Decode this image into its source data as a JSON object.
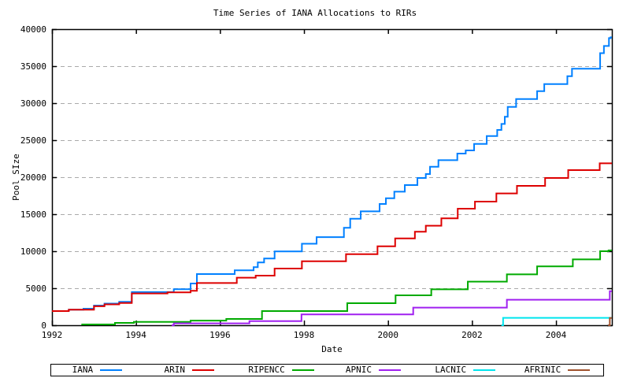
{
  "chart_data": {
    "type": "line",
    "step": true,
    "title": "Time Series of IANA Allocations to RIRs",
    "xlabel": "Date",
    "ylabel": "Pool SIze",
    "xlim": [
      1992,
      2005.33
    ],
    "ylim": [
      0,
      40000
    ],
    "xticks": [
      1992,
      1994,
      1996,
      1998,
      2000,
      2002,
      2004
    ],
    "yticks": [
      0,
      5000,
      10000,
      15000,
      20000,
      25000,
      30000,
      35000,
      40000
    ],
    "grid": "horizontal dashed gray lines at y ticks (5000-35000)",
    "legend_position": "bottom",
    "axis_color": "#000000",
    "grid_color": "#aaaaaa",
    "series": [
      {
        "name": "IANA",
        "color": "#0080ff",
        "points": [
          [
            1992.0,
            1920
          ],
          [
            1992.4,
            2100
          ],
          [
            1992.75,
            2230
          ],
          [
            1993.0,
            2660
          ],
          [
            1993.25,
            2920
          ],
          [
            1993.6,
            3160
          ],
          [
            1993.9,
            4480
          ],
          [
            1994.9,
            4870
          ],
          [
            1995.3,
            5640
          ],
          [
            1995.45,
            6910
          ],
          [
            1996.35,
            7420
          ],
          [
            1996.8,
            7840
          ],
          [
            1996.9,
            8480
          ],
          [
            1997.05,
            9010
          ],
          [
            1997.3,
            9980
          ],
          [
            1997.95,
            11010
          ],
          [
            1998.3,
            11900
          ],
          [
            1998.95,
            13160
          ],
          [
            1999.1,
            14390
          ],
          [
            1999.35,
            15390
          ],
          [
            1999.8,
            16380
          ],
          [
            1999.95,
            17160
          ],
          [
            2000.15,
            18050
          ],
          [
            2000.4,
            18940
          ],
          [
            2000.7,
            19890
          ],
          [
            2000.9,
            20420
          ],
          [
            2001.0,
            21410
          ],
          [
            2001.2,
            22300
          ],
          [
            2001.65,
            23190
          ],
          [
            2001.85,
            23620
          ],
          [
            2002.05,
            24500
          ],
          [
            2002.35,
            25560
          ],
          [
            2002.6,
            26380
          ],
          [
            2002.7,
            27200
          ],
          [
            2002.78,
            28160
          ],
          [
            2002.85,
            29500
          ],
          [
            2003.05,
            30560
          ],
          [
            2003.55,
            31620
          ],
          [
            2003.72,
            32580
          ],
          [
            2004.27,
            33650
          ],
          [
            2004.38,
            34650
          ],
          [
            2005.05,
            36760
          ],
          [
            2005.14,
            37720
          ],
          [
            2005.26,
            38790
          ],
          [
            2005.3,
            38900
          ]
        ]
      },
      {
        "name": "ARIN",
        "color": "#dd0000",
        "points": [
          [
            1992.0,
            1920
          ],
          [
            1992.4,
            2100
          ],
          [
            1993.0,
            2560
          ],
          [
            1993.25,
            2820
          ],
          [
            1993.6,
            3010
          ],
          [
            1993.9,
            4300
          ],
          [
            1994.75,
            4440
          ],
          [
            1995.3,
            4650
          ],
          [
            1995.45,
            5700
          ],
          [
            1996.4,
            6420
          ],
          [
            1996.85,
            6700
          ],
          [
            1997.3,
            7660
          ],
          [
            1997.95,
            8650
          ],
          [
            1999.0,
            9600
          ],
          [
            1999.75,
            10670
          ],
          [
            2000.17,
            11730
          ],
          [
            2000.64,
            12630
          ],
          [
            2000.9,
            13440
          ],
          [
            2001.27,
            14440
          ],
          [
            2001.66,
            15740
          ],
          [
            2002.07,
            16700
          ],
          [
            2002.58,
            17800
          ],
          [
            2003.07,
            18830
          ],
          [
            2003.74,
            19890
          ],
          [
            2004.29,
            20960
          ],
          [
            2005.04,
            21880
          ]
        ]
      },
      {
        "name": "RIPENCC",
        "color": "#00aa00",
        "points": [
          [
            1992.7,
            100
          ],
          [
            1993.5,
            320
          ],
          [
            1993.95,
            450
          ],
          [
            1995.3,
            620
          ],
          [
            1996.15,
            850
          ],
          [
            1997.0,
            1915
          ],
          [
            1999.03,
            2980
          ],
          [
            2000.18,
            4040
          ],
          [
            2001.03,
            4860
          ],
          [
            2001.9,
            5890
          ],
          [
            2002.83,
            6880
          ],
          [
            2003.55,
            7950
          ],
          [
            2004.4,
            8900
          ],
          [
            2005.05,
            10000
          ],
          [
            2005.25,
            10100
          ]
        ]
      },
      {
        "name": "APNIC",
        "color": "#a020f0",
        "points": [
          [
            1994.85,
            0
          ],
          [
            1994.9,
            250
          ],
          [
            1996.7,
            560
          ],
          [
            1997.94,
            1460
          ],
          [
            2000.6,
            2375
          ],
          [
            2002.83,
            3440
          ],
          [
            2005.28,
            4600
          ]
        ]
      },
      {
        "name": "LACNIC",
        "color": "#00e5ee",
        "points": [
          [
            2002.7,
            0
          ],
          [
            2002.74,
            1000
          ]
        ]
      },
      {
        "name": "AFRINIC",
        "color": "#a0522d",
        "points": [
          [
            2005.24,
            0
          ],
          [
            2005.28,
            980
          ]
        ]
      }
    ]
  }
}
